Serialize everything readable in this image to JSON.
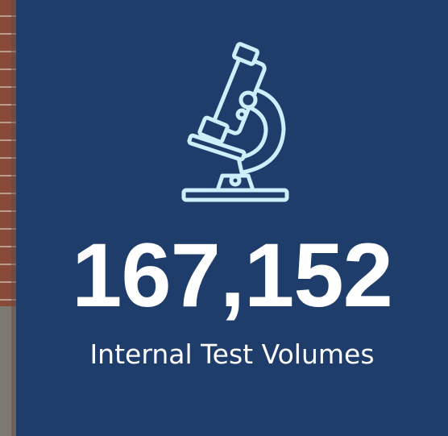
{
  "stat": {
    "value": "167,152",
    "label": "Internal Test Volumes"
  }
}
